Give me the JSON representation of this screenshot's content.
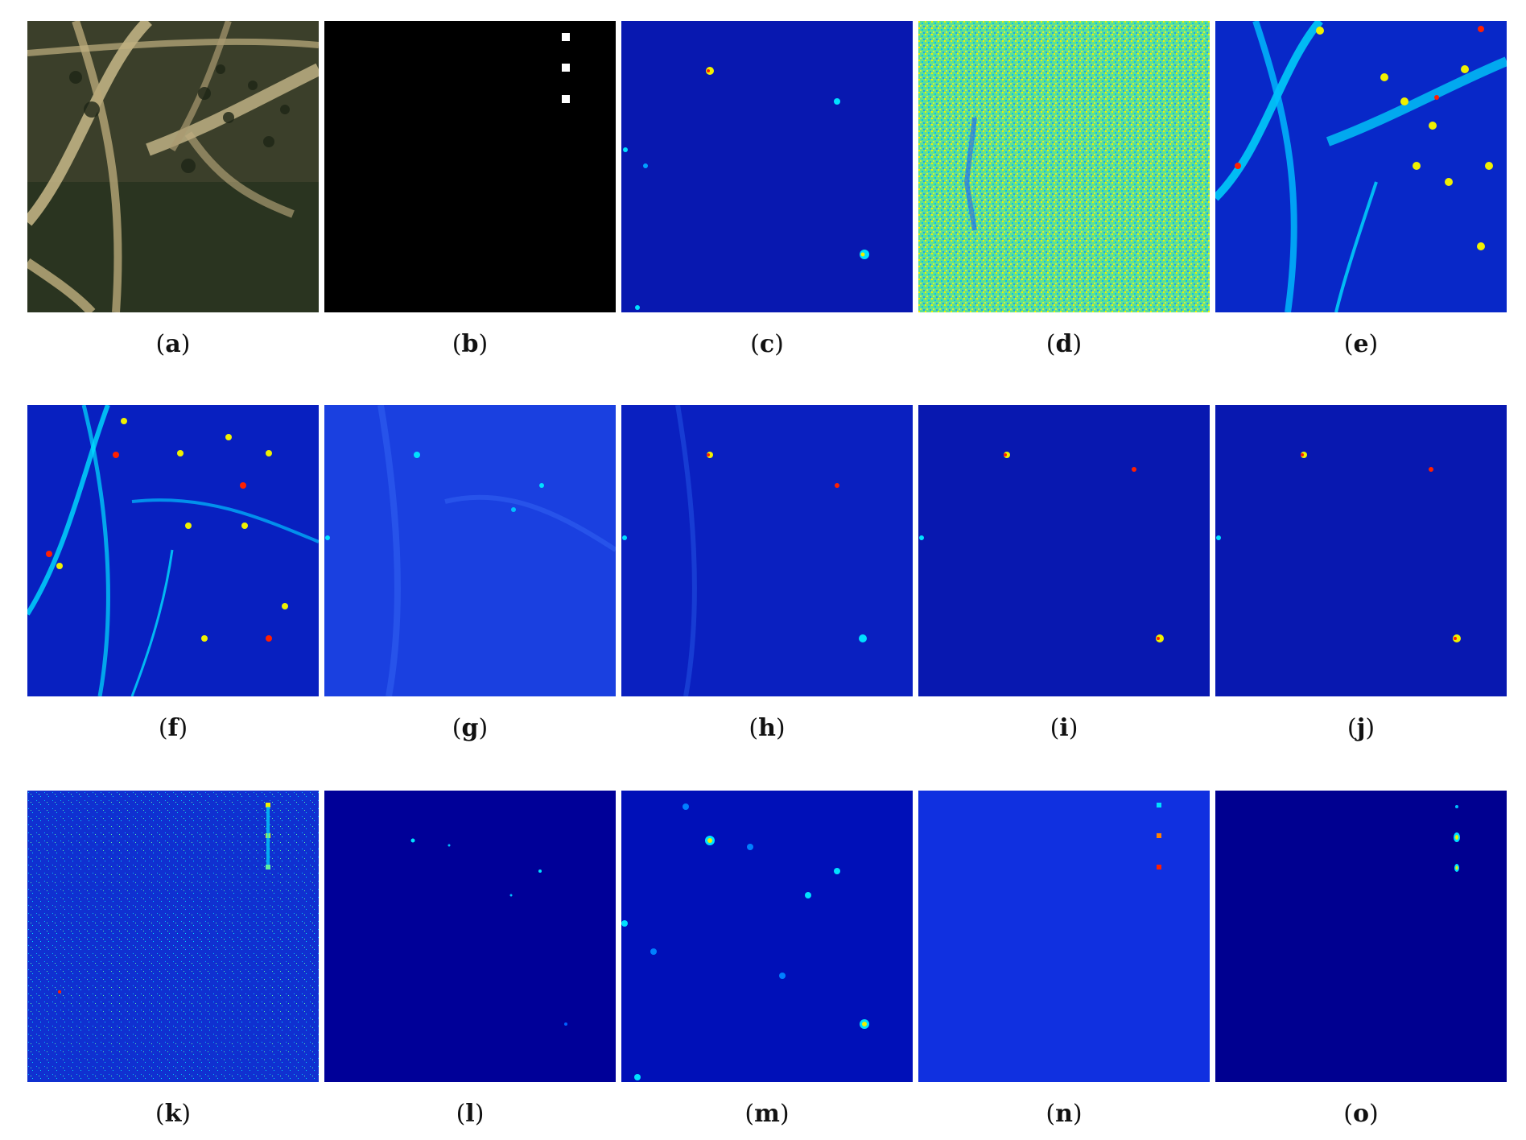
{
  "figure": {
    "panels": [
      {
        "label": "a",
        "map": "rgb-scene"
      },
      {
        "label": "b",
        "map": "ground-truth"
      },
      {
        "label": "c",
        "map": "detection-map"
      },
      {
        "label": "d",
        "map": "detection-map"
      },
      {
        "label": "e",
        "map": "detection-map"
      },
      {
        "label": "f",
        "map": "detection-map"
      },
      {
        "label": "g",
        "map": "detection-map"
      },
      {
        "label": "h",
        "map": "detection-map"
      },
      {
        "label": "i",
        "map": "detection-map"
      },
      {
        "label": "j",
        "map": "detection-map"
      },
      {
        "label": "k",
        "map": "detection-map"
      },
      {
        "label": "l",
        "map": "detection-map"
      },
      {
        "label": "m",
        "map": "detection-map"
      },
      {
        "label": "n",
        "map": "detection-map"
      },
      {
        "label": "o",
        "map": "detection-map"
      }
    ],
    "colors": {
      "jet_dark": "#00008f",
      "jet_blue": "#0020ff",
      "jet_cyan": "#00e0ff",
      "jet_yellow": "#f0f000",
      "jet_red": "#ff2000",
      "scene_dark": "#2a3420",
      "scene_light": "#c8b888"
    }
  }
}
